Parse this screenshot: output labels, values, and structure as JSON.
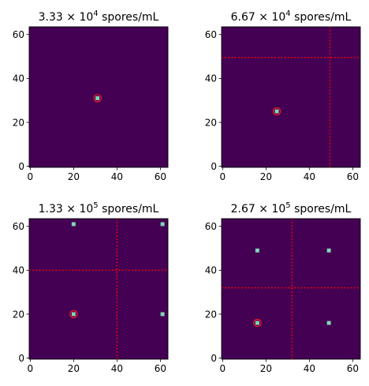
{
  "chart_data": [
    {
      "type": "heatmap",
      "title": {
        "mantissa": "3.33",
        "base": "10",
        "exponent": "4",
        "unit": "spores/mL"
      },
      "xlim": [
        0,
        63
      ],
      "ylim": [
        0,
        63
      ],
      "xticks": [
        "0",
        "20",
        "40",
        "60"
      ],
      "yticks": [
        "0",
        "20",
        "40",
        "60"
      ],
      "background_color": "#440154",
      "points": [
        [
          31,
          31
        ]
      ],
      "highlight": [
        31,
        31
      ],
      "divider_x": null,
      "divider_y": null
    },
    {
      "type": "heatmap",
      "title": {
        "mantissa": "6.67",
        "base": "10",
        "exponent": "4",
        "unit": "spores/mL"
      },
      "xlim": [
        0,
        63
      ],
      "ylim": [
        0,
        63
      ],
      "xticks": [
        "0",
        "20",
        "40",
        "60"
      ],
      "yticks": [
        "0",
        "20",
        "40",
        "60"
      ],
      "background_color": "#440154",
      "points": [
        [
          25,
          25
        ]
      ],
      "highlight": [
        25,
        25
      ],
      "divider_x": 49.5,
      "divider_y": 49.5
    },
    {
      "type": "heatmap",
      "title": {
        "mantissa": "1.33",
        "base": "10",
        "exponent": "5",
        "unit": "spores/mL"
      },
      "xlim": [
        0,
        63
      ],
      "ylim": [
        0,
        63
      ],
      "xticks": [
        "0",
        "20",
        "40",
        "60"
      ],
      "yticks": [
        "0",
        "20",
        "40",
        "60"
      ],
      "background_color": "#440154",
      "points": [
        [
          20,
          20
        ],
        [
          61,
          20
        ],
        [
          20,
          61
        ],
        [
          61,
          61
        ]
      ],
      "highlight": [
        20,
        20
      ],
      "divider_x": 40,
      "divider_y": 40
    },
    {
      "type": "heatmap",
      "title": {
        "mantissa": "2.67",
        "base": "10",
        "exponent": "5",
        "unit": "spores/mL"
      },
      "xlim": [
        0,
        63
      ],
      "ylim": [
        0,
        63
      ],
      "xticks": [
        "0",
        "20",
        "40",
        "60"
      ],
      "yticks": [
        "0",
        "20",
        "40",
        "60"
      ],
      "background_color": "#440154",
      "points": [
        [
          16,
          16
        ],
        [
          49,
          16
        ],
        [
          16,
          49
        ],
        [
          49,
          49
        ]
      ],
      "highlight": [
        16,
        16
      ],
      "divider_x": 32,
      "divider_y": 32
    }
  ],
  "colors": {
    "spot": "#7fd6b4",
    "highlight": "#ff1a1a",
    "divider": "#ff0000",
    "axis": "#000000"
  }
}
